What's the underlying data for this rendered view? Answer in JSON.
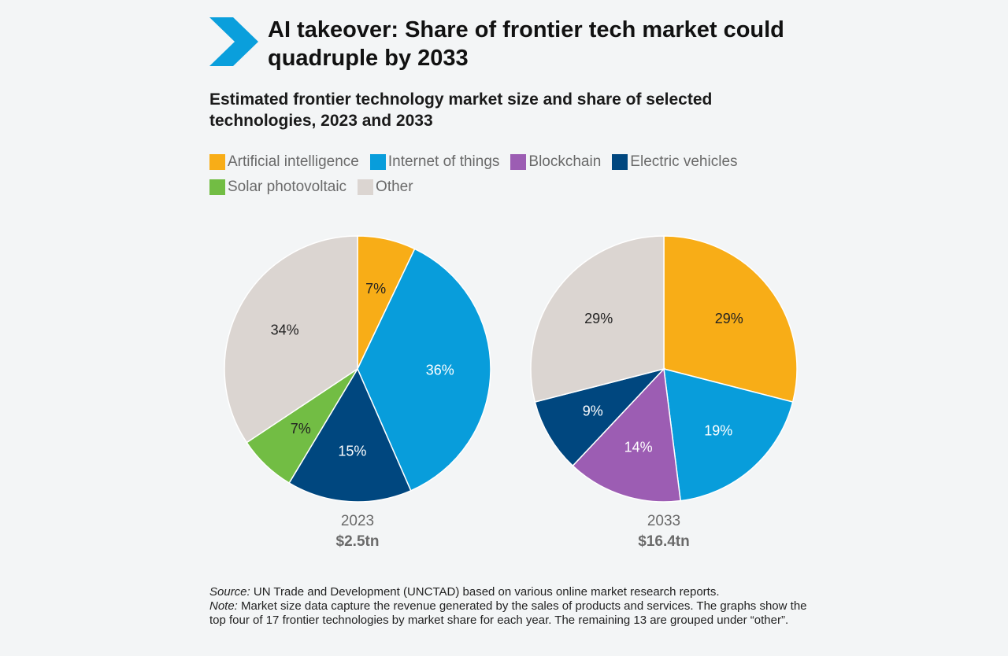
{
  "header": {
    "title": "AI takeover: Share of frontier tech market could quadruple by 2033",
    "subtitle": "Estimated frontier technology market size and share of selected technologies, 2023 and 2033"
  },
  "colors": {
    "ai": "#f8ad17",
    "iot": "#089ddb",
    "blockchain": "#9c5db3",
    "ev": "#00477f",
    "solar": "#72bd44",
    "other": "#dbd5d1",
    "arrow": "#0a9fdc"
  },
  "legend": {
    "items": [
      {
        "label": "Artificial intelligence",
        "color": "#f8ad17"
      },
      {
        "label": "Internet of things",
        "color": "#089ddb"
      },
      {
        "label": "Blockchain",
        "color": "#9c5db3"
      },
      {
        "label": "Electric vehicles",
        "color": "#00477f"
      },
      {
        "label": "Solar photovoltaic",
        "color": "#72bd44"
      },
      {
        "label": "Other",
        "color": "#dbd5d1"
      }
    ]
  },
  "chart_data": [
    {
      "type": "pie",
      "year": "2023",
      "total": "$2.5tn",
      "slices": [
        {
          "name": "Artificial intelligence",
          "value": 7,
          "label": "7%",
          "color": "#f8ad17",
          "text_color": "#222222"
        },
        {
          "name": "Internet of things",
          "value": 36,
          "label": "36%",
          "color": "#089ddb",
          "text_color": "#ffffff"
        },
        {
          "name": "Electric vehicles",
          "value": 15,
          "label": "15%",
          "color": "#00477f",
          "text_color": "#ffffff"
        },
        {
          "name": "Solar photovoltaic",
          "value": 7,
          "label": "7%",
          "color": "#72bd44",
          "text_color": "#222222"
        },
        {
          "name": "Other",
          "value": 34,
          "label": "34%",
          "color": "#dbd5d1",
          "text_color": "#222222"
        }
      ]
    },
    {
      "type": "pie",
      "year": "2033",
      "total": "$16.4tn",
      "slices": [
        {
          "name": "Artificial intelligence",
          "value": 29,
          "label": "29%",
          "color": "#f8ad17",
          "text_color": "#222222"
        },
        {
          "name": "Internet of things",
          "value": 19,
          "label": "19%",
          "color": "#089ddb",
          "text_color": "#ffffff"
        },
        {
          "name": "Blockchain",
          "value": 14,
          "label": "14%",
          "color": "#9c5db3",
          "text_color": "#ffffff"
        },
        {
          "name": "Electric vehicles",
          "value": 9,
          "label": "9%",
          "color": "#00477f",
          "text_color": "#ffffff"
        },
        {
          "name": "Other",
          "value": 29,
          "label": "29%",
          "color": "#dbd5d1",
          "text_color": "#222222"
        }
      ]
    }
  ],
  "footnote": {
    "source_label": "Source:",
    "source_text": " UN Trade and Development (UNCTAD) based on various online market research reports.",
    "note_label": "Note:",
    "note_text": " Market size data capture the revenue generated by the sales of products and services. The graphs show the top four of 17 frontier technologies by market share for each year. The remaining 13 are grouped under “other”."
  }
}
